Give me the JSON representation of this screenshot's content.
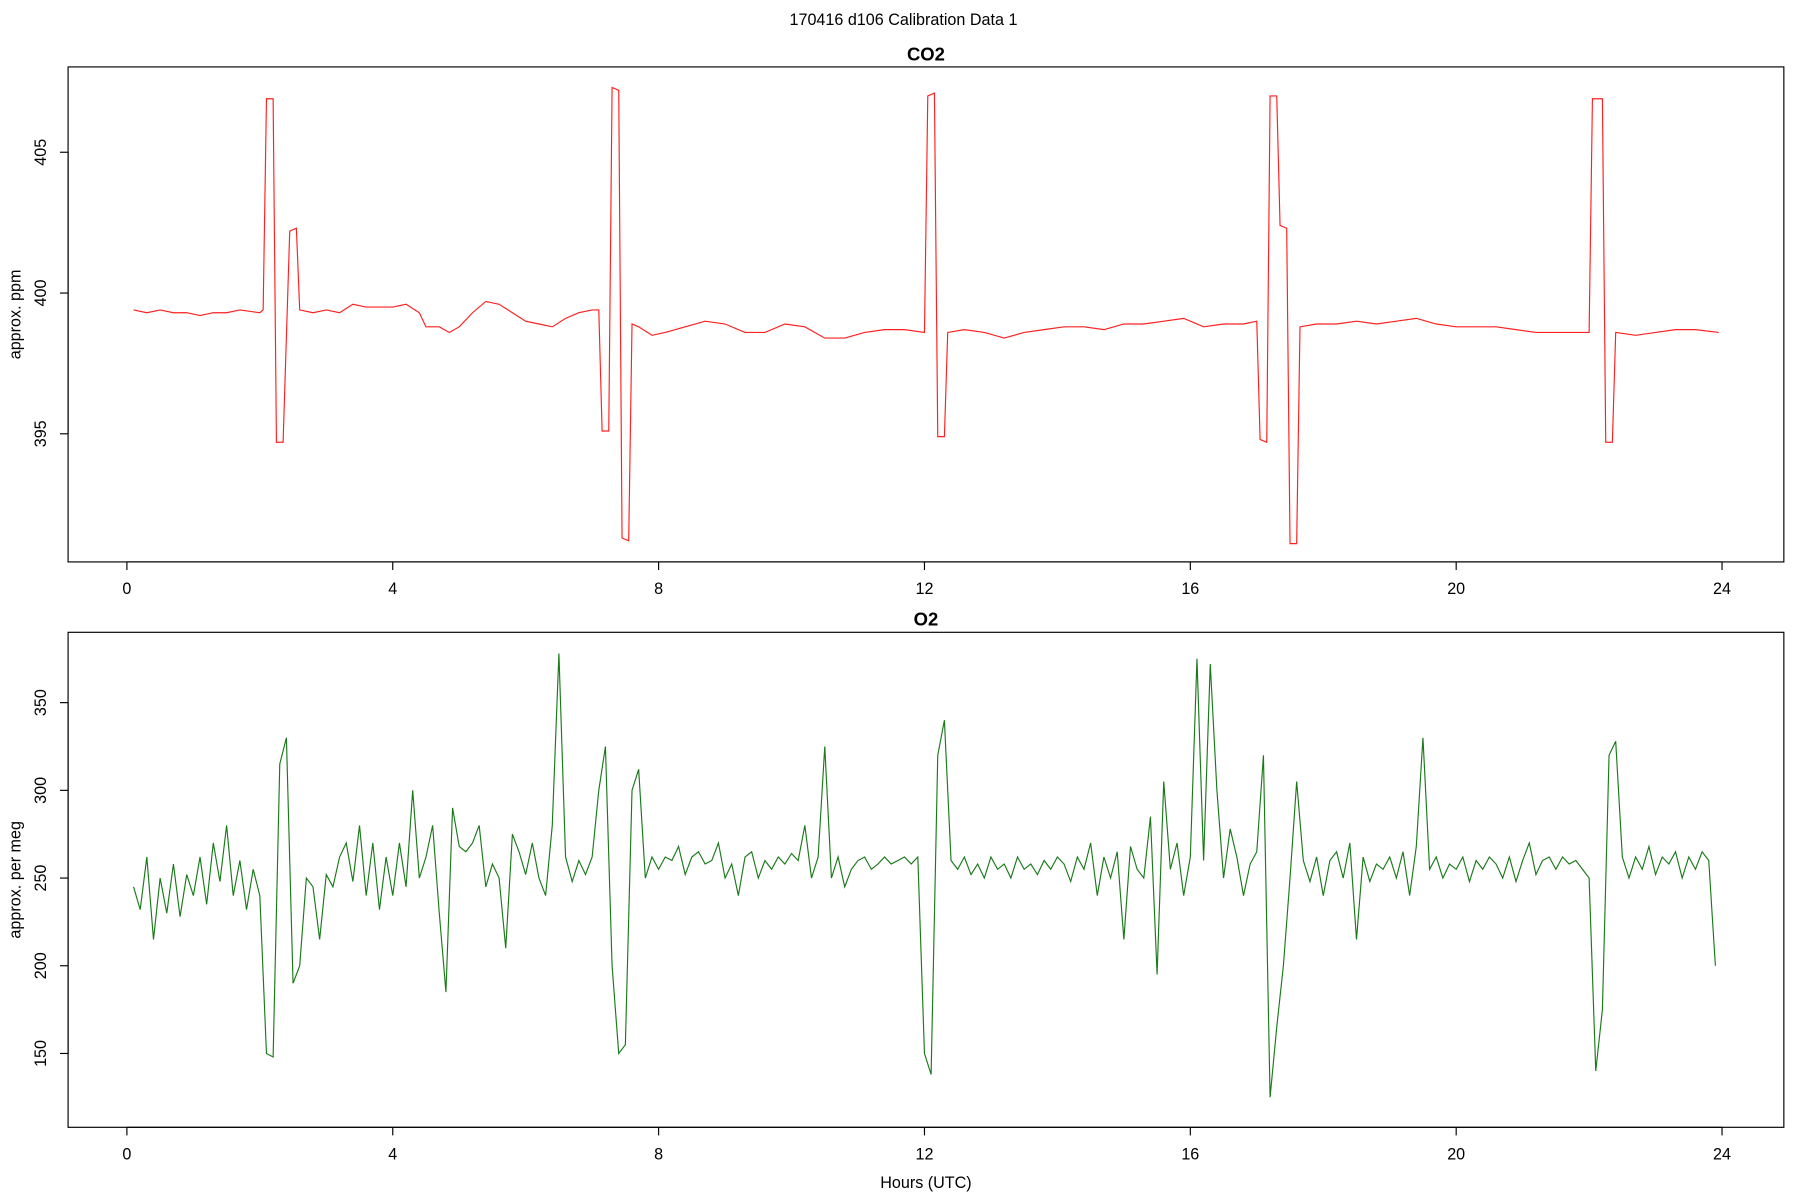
{
  "title": "170416   d106   Calibration Data 1",
  "chart_data": [
    {
      "type": "line",
      "title": "CO2",
      "ylabel": "approx. ppm",
      "xlim": [
        -0.885,
        24.93
      ],
      "xticks": [
        0,
        4,
        8,
        12,
        16,
        20,
        24
      ],
      "ylim": [
        390.45,
        408.03
      ],
      "yticks": [
        395,
        400,
        405
      ],
      "x": [
        0.1,
        0.3,
        0.5,
        0.7,
        0.9,
        1.1,
        1.3,
        1.5,
        1.7,
        2.0,
        2.05,
        2.1,
        2.2,
        2.25,
        2.35,
        2.45,
        2.55,
        2.6,
        2.8,
        3.0,
        3.2,
        3.4,
        3.6,
        3.8,
        4.0,
        4.2,
        4.4,
        4.5,
        4.7,
        4.85,
        5.0,
        5.2,
        5.4,
        5.6,
        5.8,
        6.0,
        6.2,
        6.4,
        6.6,
        6.8,
        7.0,
        7.1,
        7.15,
        7.25,
        7.3,
        7.4,
        7.45,
        7.55,
        7.6,
        7.7,
        7.9,
        8.1,
        8.4,
        8.7,
        9.0,
        9.3,
        9.6,
        9.9,
        10.2,
        10.5,
        10.8,
        11.1,
        11.4,
        11.7,
        12.0,
        12.05,
        12.15,
        12.2,
        12.3,
        12.35,
        12.6,
        12.9,
        13.2,
        13.5,
        13.8,
        14.1,
        14.4,
        14.7,
        15.0,
        15.3,
        15.6,
        15.9,
        16.2,
        16.5,
        16.8,
        17.0,
        17.05,
        17.15,
        17.2,
        17.3,
        17.35,
        17.45,
        17.5,
        17.6,
        17.65,
        17.9,
        18.2,
        18.5,
        18.8,
        19.1,
        19.4,
        19.7,
        20.0,
        20.3,
        20.6,
        20.9,
        21.2,
        21.5,
        21.8,
        22.0,
        22.05,
        22.2,
        22.25,
        22.35,
        22.4,
        22.7,
        23.0,
        23.3,
        23.6,
        23.95
      ],
      "series": [
        {
          "name": "CO2",
          "color": "#ff2020",
          "values": [
            399.4,
            399.3,
            399.4,
            399.3,
            399.3,
            399.2,
            399.3,
            399.3,
            399.4,
            399.3,
            399.4,
            406.9,
            406.9,
            394.7,
            394.7,
            402.2,
            402.3,
            399.4,
            399.3,
            399.4,
            399.3,
            399.6,
            399.5,
            399.5,
            399.5,
            399.6,
            399.3,
            398.8,
            398.8,
            398.6,
            398.8,
            399.3,
            399.7,
            399.6,
            399.3,
            399.0,
            398.9,
            398.8,
            399.1,
            399.3,
            399.4,
            399.4,
            395.1,
            395.1,
            407.3,
            407.2,
            391.3,
            391.2,
            398.9,
            398.8,
            398.5,
            398.6,
            398.8,
            399.0,
            398.9,
            398.6,
            398.6,
            398.9,
            398.8,
            398.4,
            398.4,
            398.6,
            398.7,
            398.7,
            398.6,
            407.0,
            407.1,
            394.9,
            394.9,
            398.6,
            398.7,
            398.6,
            398.4,
            398.6,
            398.7,
            398.8,
            398.8,
            398.7,
            398.9,
            398.9,
            399.0,
            399.1,
            398.8,
            398.9,
            398.9,
            399.0,
            394.8,
            394.7,
            407.0,
            407.0,
            402.4,
            402.3,
            391.1,
            391.1,
            398.8,
            398.9,
            398.9,
            399.0,
            398.9,
            399.0,
            399.1,
            398.9,
            398.8,
            398.8,
            398.8,
            398.7,
            398.6,
            398.6,
            398.6,
            398.6,
            406.9,
            406.9,
            394.7,
            394.7,
            398.6,
            398.5,
            398.6,
            398.7,
            398.7,
            398.6
          ]
        }
      ]
    },
    {
      "type": "line",
      "title": "O2",
      "ylabel": "approx. per meg",
      "xlabel": "Hours (UTC)",
      "xlim": [
        -0.885,
        24.93
      ],
      "xticks": [
        0,
        4,
        8,
        12,
        16,
        20,
        24
      ],
      "ylim": [
        107.9,
        390.1
      ],
      "yticks": [
        150,
        200,
        250,
        300,
        350
      ],
      "x": [
        0.1,
        0.2,
        0.3,
        0.4,
        0.5,
        0.6,
        0.7,
        0.8,
        0.9,
        1.0,
        1.1,
        1.2,
        1.3,
        1.4,
        1.5,
        1.6,
        1.7,
        1.8,
        1.9,
        2.0,
        2.1,
        2.2,
        2.3,
        2.4,
        2.5,
        2.6,
        2.7,
        2.8,
        2.9,
        3.0,
        3.1,
        3.2,
        3.3,
        3.4,
        3.5,
        3.6,
        3.7,
        3.8,
        3.9,
        4.0,
        4.1,
        4.2,
        4.3,
        4.4,
        4.5,
        4.6,
        4.7,
        4.8,
        4.9,
        5.0,
        5.1,
        5.2,
        5.3,
        5.4,
        5.5,
        5.6,
        5.7,
        5.8,
        5.9,
        6.0,
        6.1,
        6.2,
        6.3,
        6.4,
        6.5,
        6.6,
        6.7,
        6.8,
        6.9,
        7.0,
        7.1,
        7.2,
        7.3,
        7.4,
        7.5,
        7.6,
        7.7,
        7.8,
        7.9,
        8.0,
        8.1,
        8.2,
        8.3,
        8.4,
        8.5,
        8.6,
        8.7,
        8.8,
        8.9,
        9.0,
        9.1,
        9.2,
        9.3,
        9.4,
        9.5,
        9.6,
        9.7,
        9.8,
        9.9,
        10.0,
        10.1,
        10.2,
        10.3,
        10.4,
        10.5,
        10.6,
        10.7,
        10.8,
        10.9,
        11.0,
        11.1,
        11.2,
        11.3,
        11.4,
        11.5,
        11.6,
        11.7,
        11.8,
        11.9,
        12.0,
        12.1,
        12.2,
        12.3,
        12.4,
        12.5,
        12.6,
        12.7,
        12.8,
        12.9,
        13.0,
        13.1,
        13.2,
        13.3,
        13.4,
        13.5,
        13.6,
        13.7,
        13.8,
        13.9,
        14.0,
        14.1,
        14.2,
        14.3,
        14.4,
        14.5,
        14.6,
        14.7,
        14.8,
        14.9,
        15.0,
        15.1,
        15.2,
        15.3,
        15.4,
        15.5,
        15.6,
        15.7,
        15.8,
        15.9,
        16.0,
        16.1,
        16.2,
        16.3,
        16.4,
        16.5,
        16.6,
        16.7,
        16.8,
        16.9,
        17.0,
        17.1,
        17.2,
        17.3,
        17.4,
        17.5,
        17.6,
        17.7,
        17.8,
        17.9,
        18.0,
        18.1,
        18.2,
        18.3,
        18.4,
        18.5,
        18.6,
        18.7,
        18.8,
        18.9,
        19.0,
        19.1,
        19.2,
        19.3,
        19.4,
        19.5,
        19.6,
        19.7,
        19.8,
        19.9,
        20.0,
        20.1,
        20.2,
        20.3,
        20.4,
        20.5,
        20.6,
        20.7,
        20.8,
        20.9,
        21.0,
        21.1,
        21.2,
        21.3,
        21.4,
        21.5,
        21.6,
        21.7,
        21.8,
        21.9,
        22.0,
        22.1,
        22.2,
        22.3,
        22.4,
        22.5,
        22.6,
        22.7,
        22.8,
        22.9,
        23.0,
        23.1,
        23.2,
        23.3,
        23.4,
        23.5,
        23.6,
        23.7,
        23.8,
        23.9
      ],
      "series": [
        {
          "name": "O2",
          "color": "#1a7a1a",
          "values": [
            245,
            232,
            262,
            215,
            250,
            230,
            258,
            228,
            252,
            240,
            262,
            235,
            270,
            248,
            280,
            240,
            260,
            232,
            255,
            240,
            150,
            148,
            315,
            330,
            190,
            200,
            250,
            245,
            215,
            252,
            245,
            262,
            270,
            248,
            280,
            240,
            270,
            232,
            262,
            240,
            270,
            245,
            300,
            250,
            262,
            280,
            230,
            185,
            290,
            268,
            265,
            270,
            280,
            245,
            258,
            250,
            210,
            275,
            265,
            252,
            270,
            250,
            240,
            280,
            378,
            262,
            248,
            260,
            252,
            262,
            300,
            325,
            200,
            150,
            155,
            300,
            312,
            250,
            262,
            255,
            262,
            260,
            268,
            252,
            262,
            265,
            258,
            260,
            270,
            250,
            258,
            240,
            262,
            265,
            250,
            260,
            255,
            262,
            258,
            264,
            260,
            280,
            250,
            262,
            325,
            250,
            262,
            245,
            255,
            260,
            262,
            255,
            258,
            262,
            258,
            260,
            262,
            258,
            262,
            150,
            138,
            320,
            340,
            260,
            255,
            262,
            252,
            258,
            250,
            262,
            255,
            258,
            250,
            262,
            255,
            258,
            252,
            260,
            255,
            262,
            258,
            248,
            262,
            255,
            270,
            240,
            262,
            250,
            265,
            215,
            268,
            255,
            250,
            285,
            195,
            305,
            255,
            270,
            240,
            262,
            375,
            260,
            372,
            300,
            250,
            278,
            262,
            240,
            258,
            265,
            320,
            125,
            165,
            200,
            250,
            305,
            260,
            248,
            262,
            240,
            260,
            265,
            250,
            270,
            215,
            262,
            248,
            258,
            255,
            262,
            250,
            265,
            240,
            268,
            330,
            255,
            262,
            250,
            258,
            255,
            262,
            248,
            260,
            255,
            262,
            258,
            250,
            262,
            248,
            260,
            270,
            252,
            260,
            262,
            255,
            262,
            258,
            260,
            255,
            250,
            140,
            175,
            320,
            328,
            262,
            250,
            262,
            255,
            268,
            252,
            262,
            258,
            265,
            250,
            262,
            255,
            265,
            260,
            200
          ]
        }
      ]
    }
  ]
}
